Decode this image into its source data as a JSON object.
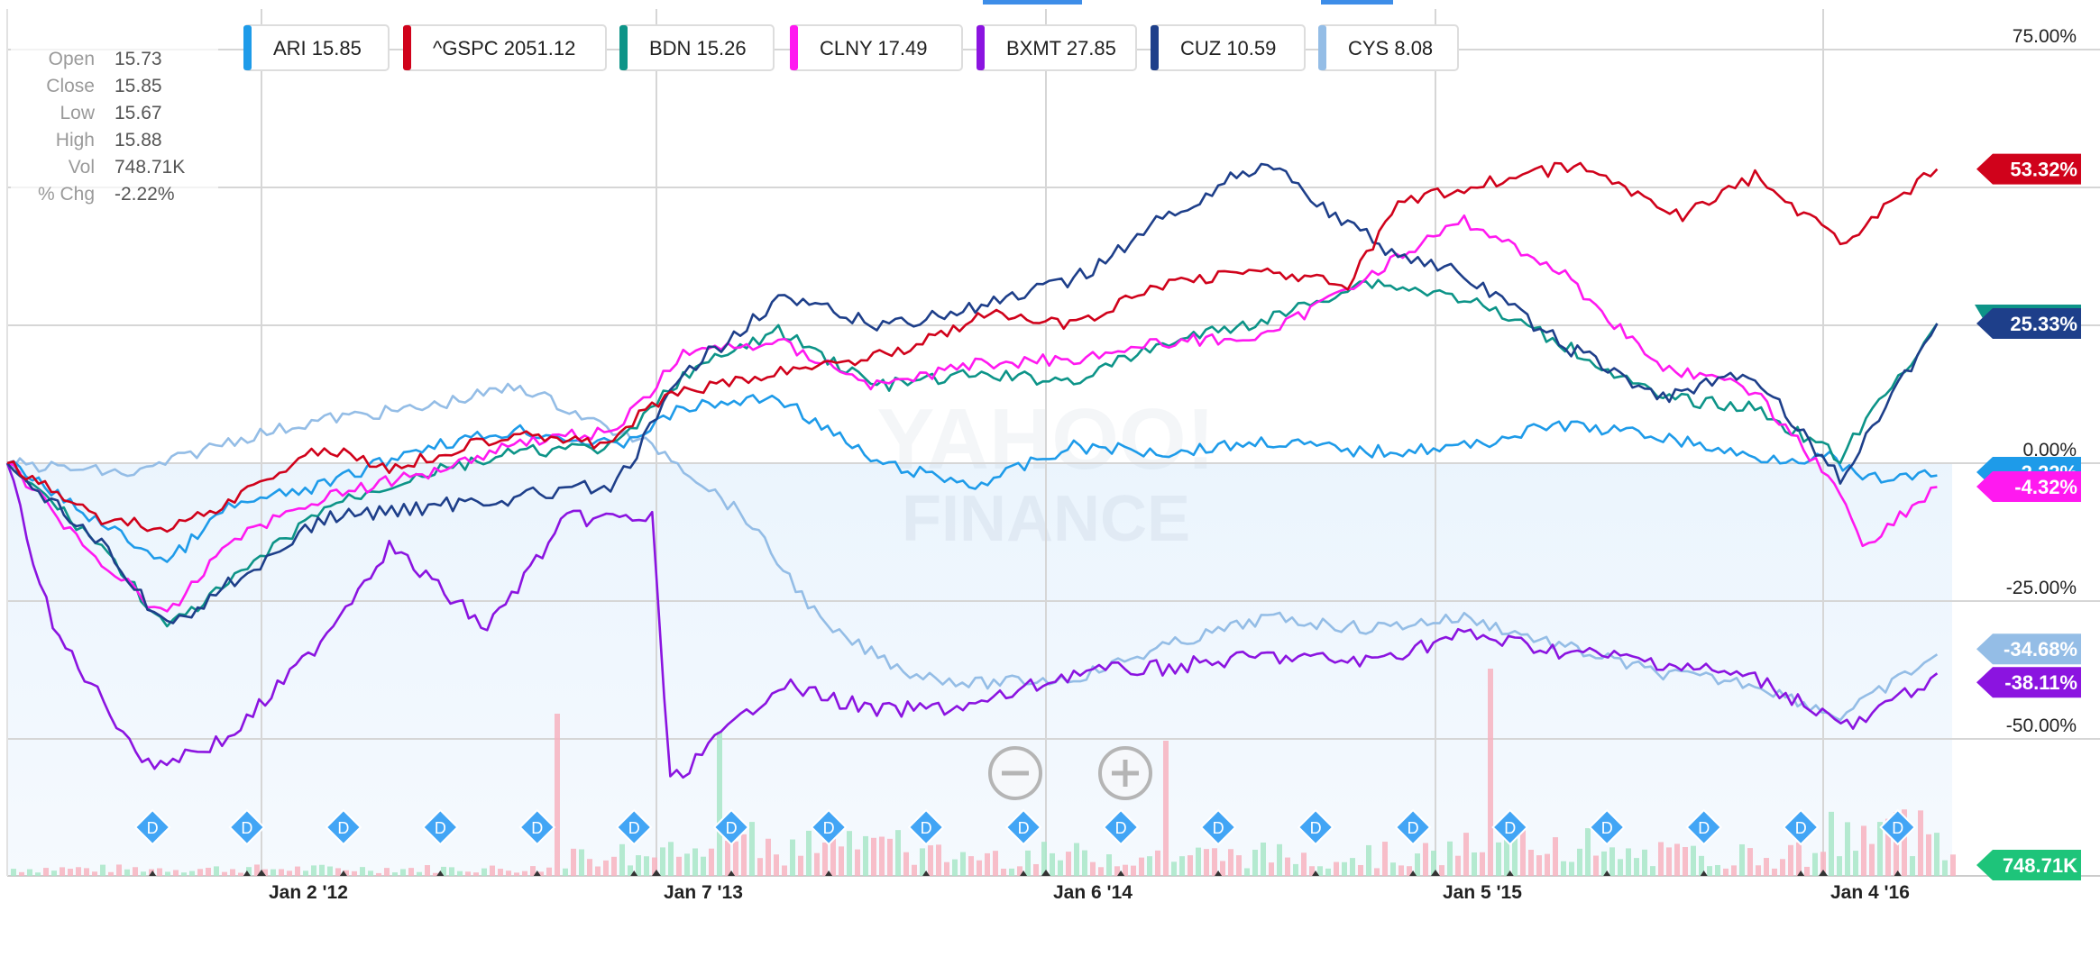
{
  "watermark": {
    "line1": "YAHOO!",
    "line2": "FINANCE"
  },
  "zoom": {
    "minus_icon": "zoom-out-icon",
    "plus_icon": "zoom-in-icon"
  },
  "ohlc": {
    "rows": [
      {
        "label": "Open",
        "value": "15.73"
      },
      {
        "label": "Close",
        "value": "15.85"
      },
      {
        "label": "Low",
        "value": "15.67"
      },
      {
        "label": "High",
        "value": "15.88"
      },
      {
        "label": "Vol",
        "value": "748.71K"
      },
      {
        "label": "% Chg",
        "value": "-2.22%"
      }
    ]
  },
  "legend": [
    {
      "label": "ARI 15.85",
      "color": "#1e9be9"
    },
    {
      "label": "^GSPC 2051.12",
      "color": "#d0021b"
    },
    {
      "label": "BDN 15.26",
      "color": "#0d9488"
    },
    {
      "label": "CLNY 17.49",
      "color": "#ff19f0"
    },
    {
      "label": "BXMT 27.85",
      "color": "#8b14e0"
    },
    {
      "label": "CUZ 10.59",
      "color": "#1e3f8a"
    },
    {
      "label": "CYS 8.08",
      "color": "#94bde6"
    }
  ],
  "end_labels": [
    {
      "text": "53.32%",
      "value": 53.32,
      "color": "#d0021b"
    },
    {
      "text": "25.33%",
      "value": 25.33,
      "color": "#1e3f8a",
      "accent": "#0d9488"
    },
    {
      "text": "-2.22%",
      "value": -2.22,
      "color": "#1e9be9"
    },
    {
      "text": "-4.32%",
      "value": -4.32,
      "color": "#ff19f0"
    },
    {
      "text": "-34.68%",
      "value": -34.68,
      "color": "#94bde6"
    },
    {
      "text": "-38.11%",
      "value": -38.11,
      "color": "#8b14e0"
    },
    {
      "text": "748.71K",
      "value": null,
      "color": "#1ec47a"
    }
  ],
  "chart_data": {
    "type": "line",
    "x_axis": {
      "ticks": [
        "Jan 2 '12",
        "Jan 7 '13",
        "Jan 6 '14",
        "Jan 5 '15",
        "Jan 4 '16"
      ],
      "range": [
        "2011-05-02",
        "2016-04-20"
      ]
    },
    "y_axis": {
      "ticks": [
        "75.00%",
        "50.00%",
        "25.00%",
        "0.00%",
        "-25.00%",
        "-50.00%"
      ],
      "unit": "% change",
      "range": [
        -50,
        75
      ]
    },
    "grid": true,
    "legend_position": "top",
    "dividend_marker": "D",
    "dividend_dates": [
      "2011-09-19",
      "2011-12-19",
      "2012-03-19",
      "2012-06-18",
      "2012-09-17",
      "2012-12-17",
      "2013-03-18",
      "2013-06-17",
      "2013-09-16",
      "2013-12-16",
      "2014-03-17",
      "2014-06-16",
      "2014-09-15",
      "2014-12-15",
      "2015-03-16",
      "2015-06-15",
      "2015-09-14",
      "2015-12-14",
      "2016-03-14"
    ],
    "series": [
      {
        "name": "ARI",
        "color": "#1e9be9",
        "points": [
          [
            "2011-05-02",
            0
          ],
          [
            "2011-08-01",
            -11
          ],
          [
            "2011-10-03",
            -18
          ],
          [
            "2011-12-01",
            -8
          ],
          [
            "2012-03-01",
            -4
          ],
          [
            "2012-06-01",
            3
          ],
          [
            "2012-09-01",
            6
          ],
          [
            "2012-12-01",
            3
          ],
          [
            "2013-02-01",
            10
          ],
          [
            "2013-05-01",
            12
          ],
          [
            "2013-08-01",
            0
          ],
          [
            "2013-11-01",
            -4
          ],
          [
            "2014-02-01",
            3
          ],
          [
            "2014-05-01",
            2
          ],
          [
            "2014-08-01",
            4
          ],
          [
            "2014-11-01",
            2
          ],
          [
            "2015-02-01",
            3
          ],
          [
            "2015-05-01",
            7
          ],
          [
            "2015-08-01",
            5
          ],
          [
            "2015-11-01",
            1
          ],
          [
            "2016-01-10",
            1
          ],
          [
            "2016-02-10",
            -3
          ],
          [
            "2016-04-20",
            -2.22
          ]
        ]
      },
      {
        "name": "^GSPC",
        "color": "#d0021b",
        "points": [
          [
            "2011-05-02",
            0
          ],
          [
            "2011-08-01",
            -10
          ],
          [
            "2011-10-03",
            -12
          ],
          [
            "2011-12-01",
            -7
          ],
          [
            "2012-03-01",
            3
          ],
          [
            "2012-05-01",
            -1
          ],
          [
            "2012-09-01",
            6
          ],
          [
            "2012-11-15",
            3
          ],
          [
            "2013-01-15",
            12
          ],
          [
            "2013-05-15",
            17
          ],
          [
            "2013-08-15",
            20
          ],
          [
            "2013-11-15",
            27
          ],
          [
            "2014-02-03",
            25
          ],
          [
            "2014-05-01",
            33
          ],
          [
            "2014-08-01",
            35
          ],
          [
            "2014-10-15",
            32
          ],
          [
            "2014-12-01",
            47
          ],
          [
            "2015-02-01",
            50
          ],
          [
            "2015-05-15",
            54
          ],
          [
            "2015-08-25",
            45
          ],
          [
            "2015-11-01",
            52
          ],
          [
            "2016-01-20",
            40
          ],
          [
            "2016-03-01",
            46
          ],
          [
            "2016-04-20",
            53.32
          ]
        ]
      },
      {
        "name": "BDN",
        "color": "#0d9488",
        "points": [
          [
            "2011-05-02",
            0
          ],
          [
            "2011-08-01",
            -15
          ],
          [
            "2011-10-03",
            -30
          ],
          [
            "2011-12-01",
            -22
          ],
          [
            "2012-03-01",
            -8
          ],
          [
            "2012-06-01",
            -2
          ],
          [
            "2012-09-01",
            2
          ],
          [
            "2012-12-01",
            3
          ],
          [
            "2013-02-01",
            16
          ],
          [
            "2013-05-01",
            24
          ],
          [
            "2013-08-01",
            14
          ],
          [
            "2013-11-01",
            16
          ],
          [
            "2014-02-01",
            15
          ],
          [
            "2014-05-01",
            22
          ],
          [
            "2014-08-01",
            26
          ],
          [
            "2014-11-01",
            33
          ],
          [
            "2015-02-01",
            30
          ],
          [
            "2015-05-01",
            22
          ],
          [
            "2015-08-01",
            12
          ],
          [
            "2015-11-01",
            10
          ],
          [
            "2016-01-20",
            1
          ],
          [
            "2016-04-20",
            25.33
          ]
        ]
      },
      {
        "name": "CLNY",
        "color": "#ff19f0",
        "points": [
          [
            "2011-05-02",
            0
          ],
          [
            "2011-08-01",
            -18
          ],
          [
            "2011-10-03",
            -28
          ],
          [
            "2011-12-01",
            -14
          ],
          [
            "2012-03-01",
            -6
          ],
          [
            "2012-06-01",
            -2
          ],
          [
            "2012-09-01",
            4
          ],
          [
            "2012-12-01",
            6
          ],
          [
            "2013-02-01",
            20
          ],
          [
            "2013-05-01",
            22
          ],
          [
            "2013-08-01",
            14
          ],
          [
            "2013-11-01",
            18
          ],
          [
            "2014-02-01",
            19
          ],
          [
            "2014-05-01",
            22
          ],
          [
            "2014-08-01",
            23
          ],
          [
            "2014-11-01",
            34
          ],
          [
            "2015-02-01",
            44
          ],
          [
            "2015-05-01",
            35
          ],
          [
            "2015-08-01",
            18
          ],
          [
            "2015-11-01",
            13
          ],
          [
            "2016-01-20",
            -5
          ],
          [
            "2016-02-10",
            -15
          ],
          [
            "2016-04-20",
            -4.32
          ]
        ]
      },
      {
        "name": "BXMT",
        "color": "#8b14e0",
        "points": [
          [
            "2011-05-02",
            0
          ],
          [
            "2011-06-15",
            -30
          ],
          [
            "2011-09-15",
            -55
          ],
          [
            "2011-12-01",
            -50
          ],
          [
            "2012-02-15",
            -35
          ],
          [
            "2012-05-01",
            -15
          ],
          [
            "2012-08-01",
            -30
          ],
          [
            "2012-10-15",
            -10
          ],
          [
            "2013-01-03",
            -10
          ],
          [
            "2013-01-20",
            -58
          ],
          [
            "2013-05-01",
            -40
          ],
          [
            "2013-08-01",
            -45
          ],
          [
            "2013-11-01",
            -44
          ],
          [
            "2014-02-01",
            -38
          ],
          [
            "2014-05-01",
            -37
          ],
          [
            "2014-08-01",
            -35
          ],
          [
            "2014-11-01",
            -36
          ],
          [
            "2015-02-01",
            -31
          ],
          [
            "2015-05-01",
            -34
          ],
          [
            "2015-08-01",
            -36
          ],
          [
            "2015-11-01",
            -39
          ],
          [
            "2016-02-01",
            -48
          ],
          [
            "2016-04-20",
            -38.11
          ]
        ]
      },
      {
        "name": "CUZ",
        "color": "#1e3f8a",
        "points": [
          [
            "2011-05-02",
            0
          ],
          [
            "2011-08-01",
            -15
          ],
          [
            "2011-10-03",
            -30
          ],
          [
            "2011-12-01",
            -22
          ],
          [
            "2012-03-01",
            -10
          ],
          [
            "2012-06-01",
            -8
          ],
          [
            "2012-09-01",
            -6
          ],
          [
            "2012-12-01",
            -4
          ],
          [
            "2013-02-01",
            16
          ],
          [
            "2013-05-01",
            30
          ],
          [
            "2013-08-01",
            25
          ],
          [
            "2013-11-01",
            28
          ],
          [
            "2014-02-01",
            33
          ],
          [
            "2014-05-01",
            45
          ],
          [
            "2014-08-01",
            55
          ],
          [
            "2014-10-15",
            43
          ],
          [
            "2014-12-01",
            38
          ],
          [
            "2015-02-01",
            34
          ],
          [
            "2015-05-01",
            22
          ],
          [
            "2015-08-01",
            12
          ],
          [
            "2015-11-01",
            16
          ],
          [
            "2016-01-20",
            -3
          ],
          [
            "2016-04-20",
            25.33
          ]
        ]
      },
      {
        "name": "CYS",
        "color": "#94bde6",
        "points": [
          [
            "2011-05-02",
            0
          ],
          [
            "2011-09-01",
            -2
          ],
          [
            "2011-12-01",
            4
          ],
          [
            "2012-03-01",
            8
          ],
          [
            "2012-06-01",
            10
          ],
          [
            "2012-09-01",
            14
          ],
          [
            "2012-11-15",
            7
          ],
          [
            "2013-01-15",
            2
          ],
          [
            "2013-04-01",
            -10
          ],
          [
            "2013-06-15",
            -30
          ],
          [
            "2013-09-01",
            -38
          ],
          [
            "2013-11-01",
            -40
          ],
          [
            "2014-02-01",
            -39
          ],
          [
            "2014-05-01",
            -33
          ],
          [
            "2014-08-01",
            -28
          ],
          [
            "2014-11-01",
            -30
          ],
          [
            "2015-02-01",
            -28
          ],
          [
            "2015-05-01",
            -33
          ],
          [
            "2015-08-01",
            -38
          ],
          [
            "2015-11-01",
            -40
          ],
          [
            "2016-01-20",
            -46
          ],
          [
            "2016-04-20",
            -34.68
          ]
        ]
      }
    ],
    "volume_series": {
      "unit": "shares",
      "last": "748.71K"
    }
  }
}
